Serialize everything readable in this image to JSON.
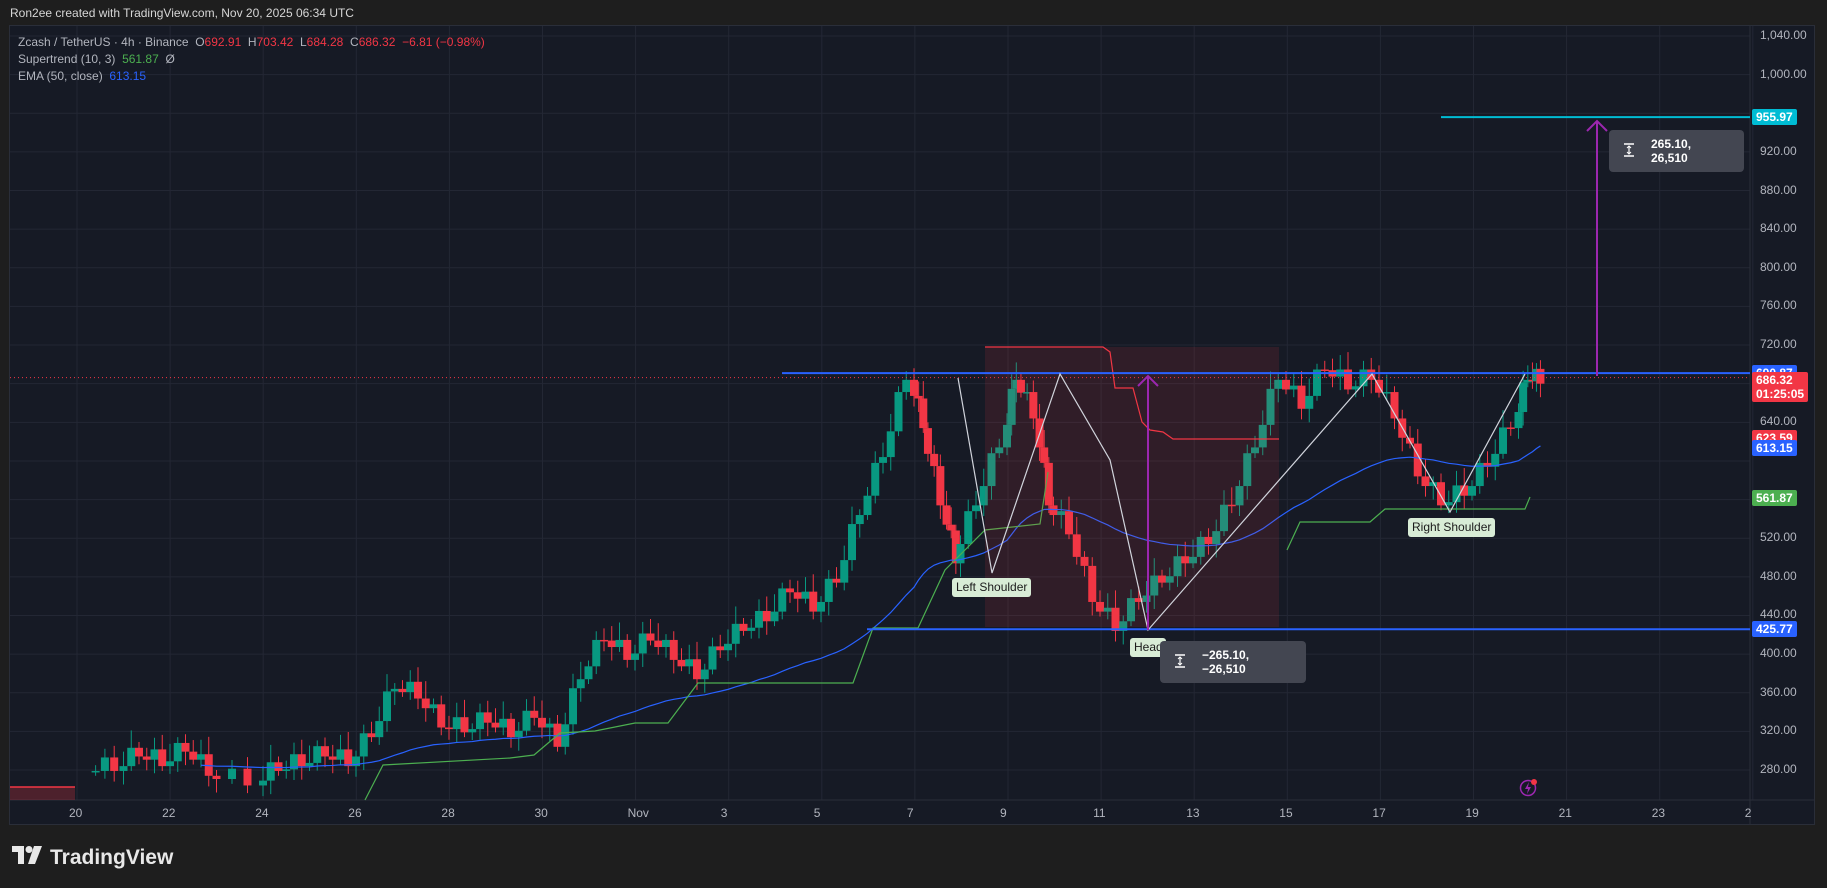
{
  "credit": "Ron2ee created with TradingView.com, Nov 20, 2025 06:34 UTC",
  "legend": {
    "symbol": "Zcash / TetherUS · 4h · Binance",
    "o_label": "O",
    "o": "692.91",
    "h_label": "H",
    "h": "703.42",
    "l_label": "L",
    "l": "684.28",
    "c_label": "C",
    "c": "686.32",
    "change": "−6.81 (−0.98%)",
    "supertrend_label": "Supertrend (10, 3)",
    "supertrend_value": "561.87",
    "supertrend_extra": "Ø",
    "ema_label": "EMA (50, close)",
    "ema_value": "613.15"
  },
  "footer": {
    "brand": "TradingView"
  },
  "colors": {
    "up": "#089981",
    "down": "#f23645",
    "ema": "#2962ff",
    "supertrend_up": "#4caf50",
    "supertrend_down": "#f23645",
    "target": "#00bcd4",
    "measure": "#9c27b0",
    "bg": "#161a25"
  },
  "price_tags": [
    {
      "value": "955.97",
      "price": 955.97,
      "color": "#00bcd4"
    },
    {
      "value": "690.87",
      "price": 690.87,
      "color": "#2962ff"
    },
    {
      "value": "686.32",
      "sub": "01:25:05",
      "price": 686.32,
      "color": "#f23645"
    },
    {
      "value": "623.59",
      "price": 623.59,
      "color": "#f23645"
    },
    {
      "value": "613.15",
      "price": 613.15,
      "color": "#2962ff"
    },
    {
      "value": "561.87",
      "price": 561.87,
      "color": "#4caf50"
    },
    {
      "value": "425.77",
      "price": 425.77,
      "color": "#2962ff"
    }
  ],
  "annotations": {
    "left_shoulder": "Left Shoulder",
    "head": "Head",
    "right_shoulder": "Right Shoulder",
    "measure_up": "265.10, 26,510",
    "measure_down": "−265.10, −26,510"
  },
  "chart_data": {
    "type": "candlestick",
    "title": "Zcash / TetherUS · 4h · Binance",
    "xlabel": "",
    "ylabel": "",
    "ylim": [
      280,
      1040
    ],
    "y_ticks": [
      "1,040.00",
      "1,000.00",
      "960.00",
      "920.00",
      "880.00",
      "840.00",
      "800.00",
      "760.00",
      "720.00",
      "680.00",
      "640.00",
      "600.00",
      "560.00",
      "520.00",
      "480.00",
      "440.00",
      "400.00",
      "360.00",
      "320.00",
      "280.00"
    ],
    "x_ticks": [
      "20",
      "22",
      "24",
      "26",
      "28",
      "30",
      "Nov",
      "3",
      "5",
      "7",
      "9",
      "11",
      "13",
      "15",
      "17",
      "19",
      "21",
      "23",
      "2"
    ],
    "grid": true,
    "series": [
      {
        "name": "close_approx",
        "x_days": [
          20.4,
          21.0,
          21.5,
          22.0,
          22.5,
          23.0,
          24.0,
          24.5,
          25.0,
          25.5,
          26.0,
          26.5,
          27.0,
          27.5,
          28.0,
          28.5,
          29.0,
          29.5,
          30.0,
          30.5,
          31.0,
          31.5,
          32.0,
          32.5,
          33.0,
          33.5,
          34.0,
          34.5,
          35.0,
          35.5,
          36.0,
          36.5,
          37.0,
          37.5,
          38.0,
          38.3,
          38.7,
          39.0,
          39.5,
          40.0,
          40.3,
          40.7,
          41.0,
          41.5,
          42.0,
          42.5,
          43.0,
          43.5,
          44.0,
          44.5,
          45.0,
          45.5,
          46.0,
          46.5,
          47.0,
          47.5,
          48.0,
          48.5,
          49.0,
          49.5,
          50.0,
          50.5,
          51.0,
          51.3
        ],
        "values": [
          285,
          300,
          290,
          305,
          280,
          270,
          285,
          290,
          300,
          290,
          320,
          370,
          360,
          330,
          325,
          335,
          320,
          340,
          310,
          380,
          420,
          400,
          420,
          400,
          380,
          410,
          430,
          440,
          470,
          450,
          480,
          550,
          610,
          690,
          640,
          560,
          500,
          560,
          620,
          690,
          650,
          560,
          530,
          460,
          430,
          460,
          480,
          500,
          520,
          560,
          620,
          690,
          660,
          700,
          680,
          690,
          650,
          590,
          560,
          570,
          600,
          640,
          690,
          686
        ]
      },
      {
        "name": "EMA (50, close)",
        "values_end": 613.15
      },
      {
        "name": "Supertrend (10, 3)",
        "values_end": 561.87
      }
    ],
    "levels": [
      {
        "name": "neckline",
        "price": 690.87
      },
      {
        "name": "head_low",
        "price": 425.77
      },
      {
        "name": "target",
        "price": 955.97
      }
    ],
    "pattern": "Inverse Head and Shoulders",
    "measured_move": 265.1
  }
}
